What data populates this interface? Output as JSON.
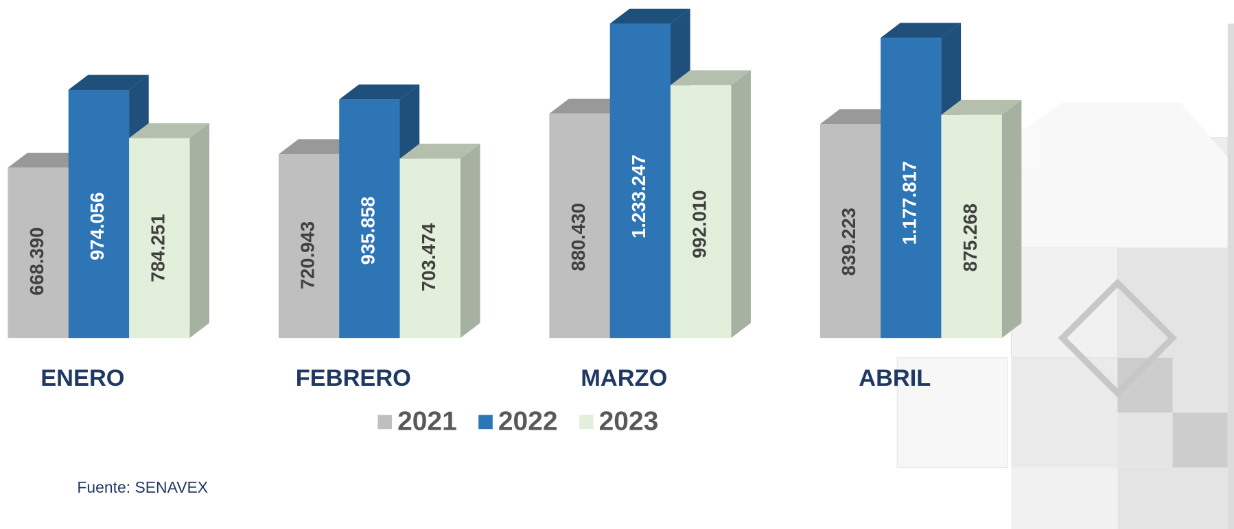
{
  "chart_data": {
    "type": "bar3d",
    "categories": [
      "ENERO",
      "FEBRERO",
      "MARZO",
      "ABRIL"
    ],
    "series": [
      {
        "name": "2021",
        "color": "#bfbfbf",
        "values": [
          668390,
          720943,
          880430,
          839223
        ],
        "value_labels": [
          "668.390",
          "720.943",
          "880.430",
          "839.223"
        ]
      },
      {
        "name": "2022",
        "color": "#2e75b6",
        "values": [
          974056,
          935858,
          1233247,
          1177817
        ],
        "value_labels": [
          "974.056",
          "935.858",
          "1.233.247",
          "1.177.817"
        ]
      },
      {
        "name": "2023",
        "color": "#e2efda",
        "values": [
          784251,
          703474,
          992010,
          875268
        ],
        "value_labels": [
          "784.251",
          "703.474",
          "992.010",
          "875.268"
        ]
      }
    ],
    "source": "Fuente: SENAVEX"
  }
}
